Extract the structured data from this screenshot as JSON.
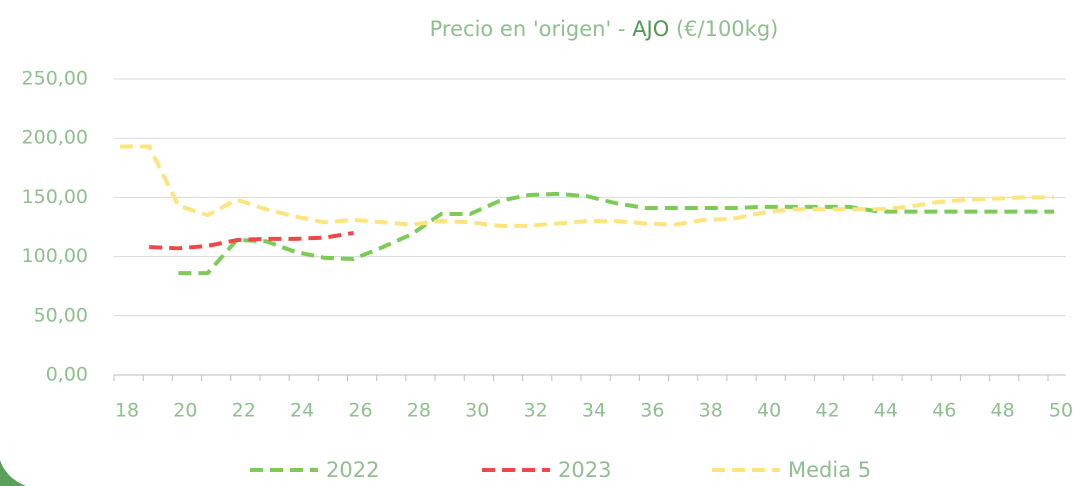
{
  "chart_data": {
    "type": "line",
    "title": [
      "Precio en 'origen' - ",
      "AJO",
      " (€/100kg)"
    ],
    "x": [
      18,
      19,
      20,
      21,
      22,
      23,
      24,
      25,
      26,
      27,
      28,
      29,
      30,
      31,
      32,
      33,
      34,
      35,
      36,
      37,
      38,
      39,
      40,
      41,
      42,
      43,
      44,
      45,
      46,
      47,
      48,
      49,
      50
    ],
    "xlim": [
      18,
      50
    ],
    "xticks": [
      18,
      20,
      22,
      24,
      26,
      28,
      30,
      32,
      34,
      36,
      38,
      40,
      42,
      44,
      46,
      48,
      50
    ],
    "ylim": [
      0,
      250
    ],
    "yticks": [
      {
        "value": 0,
        "label": "0,00"
      },
      {
        "value": 50,
        "label": "50,00"
      },
      {
        "value": 100,
        "label": "100,00"
      },
      {
        "value": 150,
        "label": "150,00"
      },
      {
        "value": 200,
        "label": "200,00"
      },
      {
        "value": 250,
        "label": "250,00"
      }
    ],
    "grid": true,
    "legend": "bottom",
    "series": [
      {
        "name": "2022",
        "color": "#7ccb55",
        "values": [
          null,
          null,
          86,
          86,
          114,
          113,
          104,
          99,
          98,
          108,
          119,
          136,
          136,
          147,
          152,
          153,
          151,
          145,
          141,
          141,
          141,
          141,
          142,
          142,
          142,
          142,
          138,
          138,
          138,
          138,
          138,
          138,
          138
        ]
      },
      {
        "name": "2023",
        "color": "#f04848",
        "values": [
          null,
          108,
          107,
          109,
          114,
          115,
          115,
          116,
          120,
          null,
          null,
          null,
          null,
          null,
          null,
          null,
          null,
          null,
          null,
          null,
          null,
          null,
          null,
          null,
          null,
          null,
          null,
          null,
          null,
          null,
          null,
          null,
          null
        ]
      },
      {
        "name": "Media 5",
        "color": "#fde47e",
        "values": [
          193,
          193,
          143,
          135,
          148,
          140,
          134,
          129,
          131,
          129,
          127,
          130,
          129,
          126,
          126,
          128,
          130,
          130,
          128,
          127,
          131,
          132,
          137,
          140,
          140,
          140,
          140,
          142,
          146,
          148,
          149,
          150,
          150
        ]
      }
    ]
  }
}
